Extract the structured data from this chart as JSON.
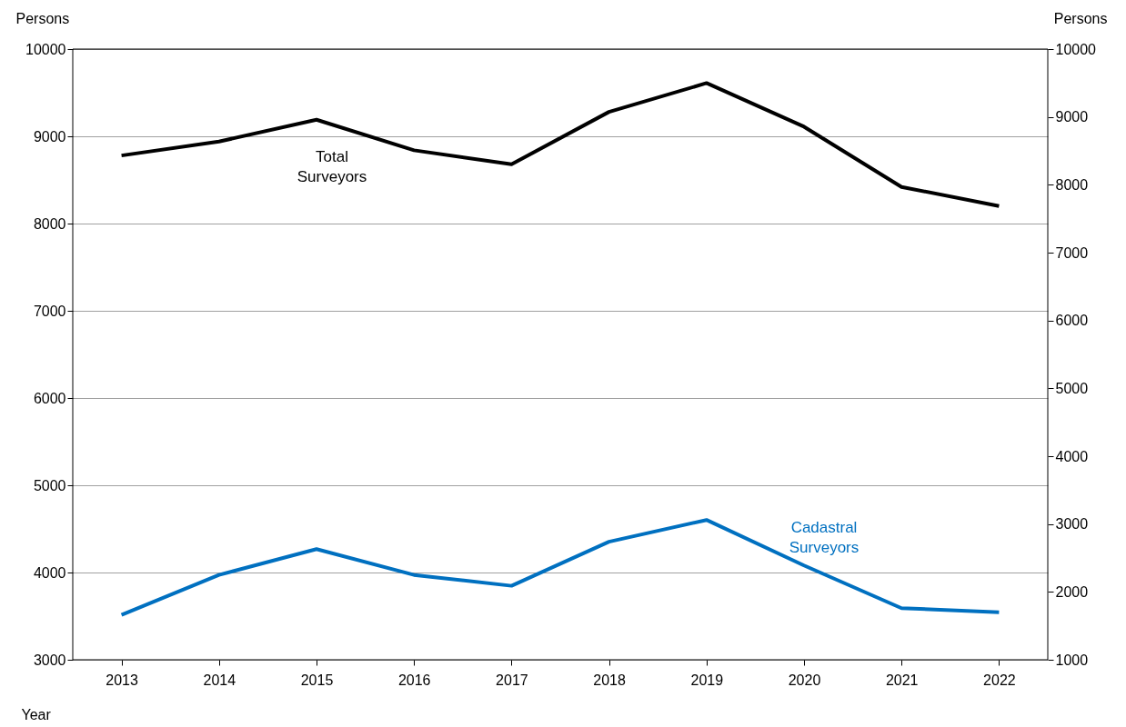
{
  "chart_data": {
    "type": "line",
    "xlabel": "Year",
    "ylabel": "Persons",
    "y2label": "Persons",
    "categories": [
      "2013",
      "2014",
      "2015",
      "2016",
      "2017",
      "2018",
      "2019",
      "2020",
      "2021",
      "2022"
    ],
    "series": [
      {
        "name": "Total Surveyors",
        "color": "#000000",
        "values": [
          8780,
          8940,
          9190,
          8840,
          8680,
          9280,
          9610,
          9110,
          8420,
          8200
        ]
      },
      {
        "name": "Cadastral Surveyors",
        "color": "#0070c0",
        "axis": "y2",
        "values": [
          1660,
          2250,
          2630,
          2250,
          2090,
          2740,
          3060,
          2390,
          1760,
          1700
        ]
      }
    ],
    "ylim": [
      3000,
      10000
    ],
    "yticks": [
      3000,
      4000,
      5000,
      6000,
      7000,
      8000,
      9000,
      10000
    ],
    "y2lim": [
      1000,
      10000
    ],
    "y2ticks": [
      1000,
      2000,
      3000,
      4000,
      5000,
      6000,
      7000,
      8000,
      9000,
      10000
    ],
    "grid": "y",
    "legend": false,
    "marker": "none",
    "line_style": "solid"
  }
}
